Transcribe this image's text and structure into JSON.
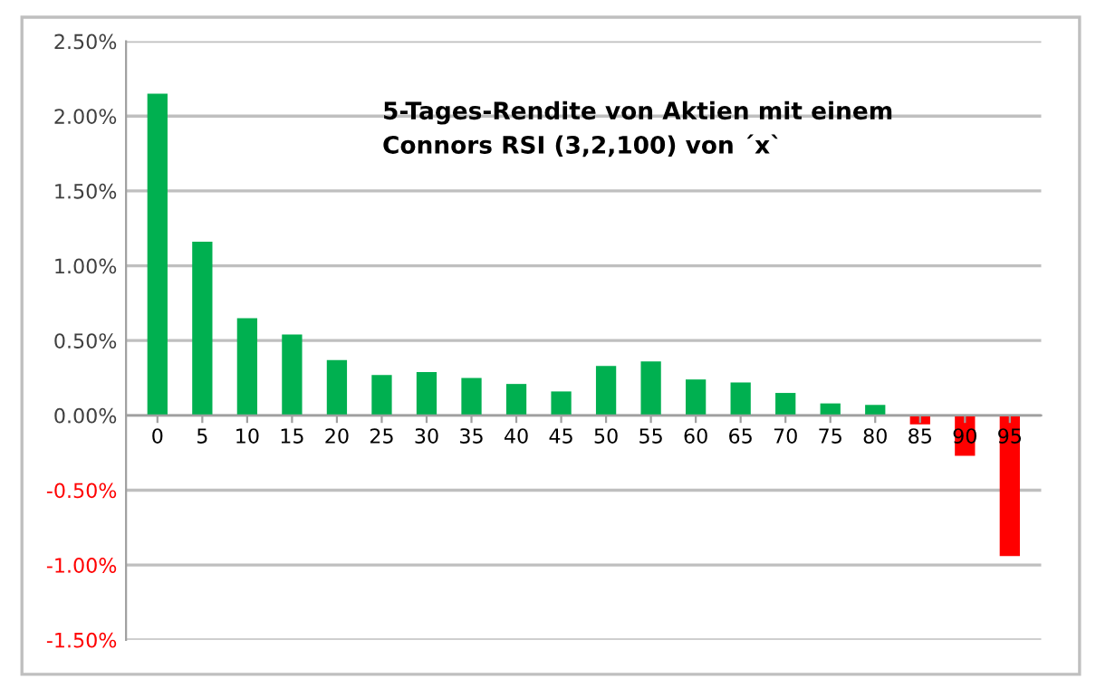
{
  "chart_data": {
    "type": "bar",
    "title": "5-Tages-Rendite von Aktien mit einem\nConnors RSI (3,2,100) von ´x`",
    "categories": [
      "0",
      "5",
      "10",
      "15",
      "20",
      "25",
      "30",
      "35",
      "40",
      "45",
      "50",
      "55",
      "60",
      "65",
      "70",
      "75",
      "80",
      "85",
      "90",
      "95"
    ],
    "values": [
      2.15,
      1.16,
      0.65,
      0.54,
      0.37,
      0.27,
      0.29,
      0.25,
      0.21,
      0.16,
      0.33,
      0.36,
      0.24,
      0.22,
      0.15,
      0.08,
      0.07,
      -0.06,
      -0.27,
      -0.94
    ],
    "colors": [
      "#00b050",
      "#00b050",
      "#00b050",
      "#00b050",
      "#00b050",
      "#00b050",
      "#00b050",
      "#00b050",
      "#00b050",
      "#00b050",
      "#00b050",
      "#00b050",
      "#00b050",
      "#00b050",
      "#00b050",
      "#00b050",
      "#00b050",
      "#ff0000",
      "#ff0000",
      "#ff0000"
    ],
    "ylim": [
      -1.5,
      2.5
    ],
    "yticks": [
      {
        "value": -1.5,
        "label": "-1.50%"
      },
      {
        "value": -1.0,
        "label": "-1.00%"
      },
      {
        "value": -0.5,
        "label": "-0.50%"
      },
      {
        "value": 0,
        "label": "0.00%"
      },
      {
        "value": 0.5,
        "label": "0.50%"
      },
      {
        "value": 1.0,
        "label": "1.00%"
      },
      {
        "value": 1.5,
        "label": "1.50%"
      },
      {
        "value": 2.0,
        "label": "2.00%"
      },
      {
        "value": 2.5,
        "label": "2.50%"
      }
    ],
    "grid": "y"
  }
}
